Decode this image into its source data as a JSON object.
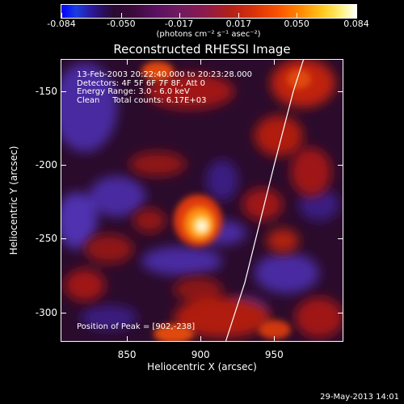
{
  "colorbar": {
    "tick_labels": [
      "-0.084",
      "-0.050",
      "-0.017",
      "0.017",
      "0.050",
      "0.084"
    ],
    "tick_values": [
      -0.084,
      -0.05,
      -0.017,
      0.017,
      0.05,
      0.084
    ],
    "units": "(photons cm⁻² s⁻¹ asec⁻²)"
  },
  "title": "Reconstructed RHESSI Image",
  "info": {
    "time_range": "13-Feb-2003 20:22:40.000 to 20:23:28.000",
    "detectors": "Detectors: 4F 5F 6F 7F 8F, Att 0",
    "energy": "Energy Range: 3.0 - 6.0 keV",
    "clean": "Clean     Total counts: 6.17E+03"
  },
  "peak_text": "Position of Peak = [902,-238]",
  "axes": {
    "xlabel": "Heliocentric X (arcsec)",
    "ylabel": "Heliocentric Y (arcsec)",
    "x_ticks": [
      "850",
      "900",
      "950"
    ],
    "x_tick_values": [
      850,
      900,
      950
    ],
    "y_ticks": [
      "-150",
      "-200",
      "-250",
      "-300"
    ],
    "y_tick_values": [
      -150,
      -200,
      -250,
      -300
    ],
    "xlim": [
      805,
      997
    ],
    "ylim": [
      -320,
      -128
    ]
  },
  "timestamp": "29-May-2013 14:01",
  "chart_data": {
    "type": "heatmap",
    "title": "Reconstructed RHESSI Image",
    "xlabel": "Heliocentric X (arcsec)",
    "ylabel": "Heliocentric Y (arcsec)",
    "xlim": [
      805,
      997
    ],
    "ylim": [
      -320,
      -128
    ],
    "color_range": [
      -0.084,
      0.084
    ],
    "peak": {
      "x": 902,
      "y": -238
    },
    "limb_curve": [
      {
        "x": 917,
        "y": -320
      },
      {
        "x": 930,
        "y": -280
      },
      {
        "x": 940,
        "y": -240
      },
      {
        "x": 950,
        "y": -200
      },
      {
        "x": 963,
        "y": -150
      },
      {
        "x": 970,
        "y": -128
      }
    ]
  }
}
